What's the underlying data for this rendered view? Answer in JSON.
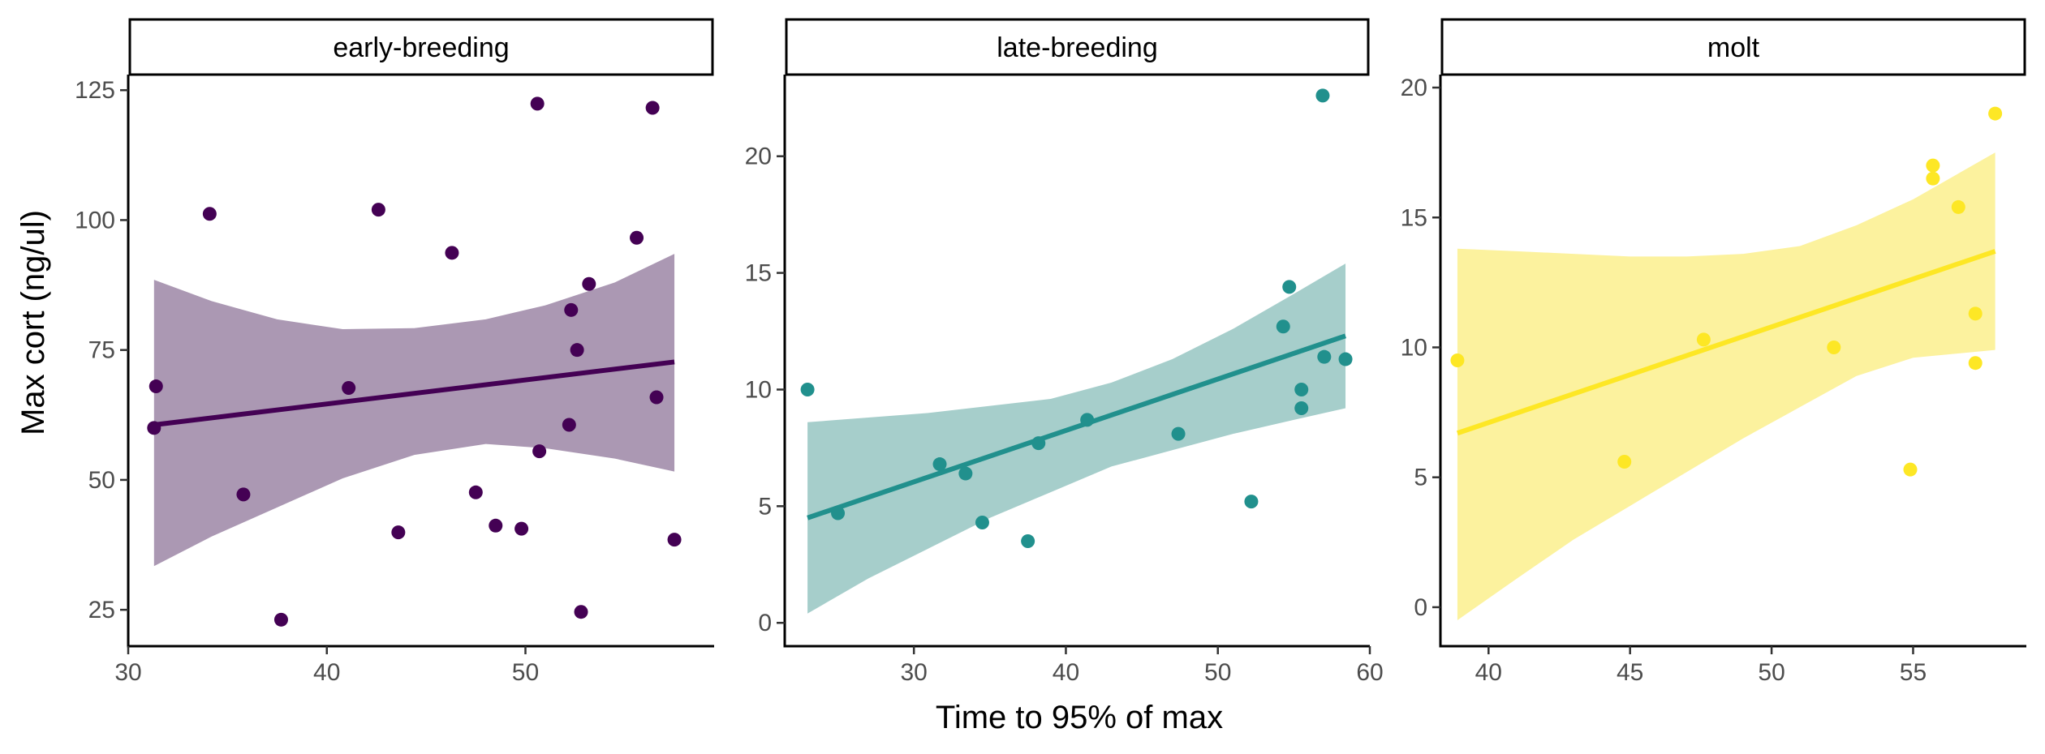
{
  "chart_data": {
    "type": "scatter",
    "xlabel": "Time to 95% of max",
    "ylabel": "Max cort (ng/ul)",
    "grid": false,
    "legend": "none",
    "panels": [
      {
        "strip": "early-breeding",
        "color": "#440154",
        "band_color": "#ab98b3",
        "xlim": [
          30,
          59.5
        ],
        "ylim": [
          18,
          128
        ],
        "x_ticks": [
          30,
          40,
          50
        ],
        "y_ticks": [
          25,
          50,
          75,
          100,
          125
        ],
        "points": [
          [
            31.3,
            60
          ],
          [
            31.4,
            68
          ],
          [
            34.1,
            101.2
          ],
          [
            35.8,
            47.2
          ],
          [
            37.7,
            23.1
          ],
          [
            41.1,
            67.7
          ],
          [
            42.6,
            102
          ],
          [
            43.6,
            39.9
          ],
          [
            46.3,
            93.7
          ],
          [
            47.5,
            47.6
          ],
          [
            48.5,
            41.2
          ],
          [
            49.8,
            40.6
          ],
          [
            50.6,
            122.4
          ],
          [
            50.7,
            55.5
          ],
          [
            52.2,
            60.6
          ],
          [
            52.3,
            82.7
          ],
          [
            52.6,
            75
          ],
          [
            52.8,
            24.6
          ],
          [
            53.2,
            87.7
          ],
          [
            55.6,
            96.6
          ],
          [
            56.4,
            121.6
          ],
          [
            56.6,
            65.9
          ],
          [
            57.5,
            38.5
          ]
        ],
        "fit": {
          "x": [
            31.3,
            57.5
          ],
          "y": [
            60.6,
            72.7
          ]
        },
        "ci": {
          "x": [
            31.3,
            34.2,
            37.5,
            40.8,
            44.4,
            48.0,
            51.0,
            54.5,
            57.5
          ],
          "upper": [
            88.5,
            84.4,
            80.9,
            79.0,
            79.2,
            80.9,
            83.6,
            88.0,
            93.5
          ],
          "lower": [
            33.4,
            39.1,
            44.7,
            50.3,
            54.8,
            56.9,
            56.1,
            54.1,
            51.6
          ]
        }
      },
      {
        "strip": "late-breeding",
        "color": "#21908d",
        "band_color": "#a6cecb",
        "xlim": [
          21.5,
          60
        ],
        "ylim": [
          -1,
          23.5
        ],
        "x_ticks": [
          30,
          40,
          50,
          60
        ],
        "y_ticks": [
          0,
          5,
          10,
          15,
          20
        ],
        "points": [
          [
            23,
            10
          ],
          [
            25,
            4.7
          ],
          [
            31.7,
            6.8
          ],
          [
            33.4,
            6.4
          ],
          [
            34.5,
            4.3
          ],
          [
            37.5,
            3.5
          ],
          [
            38.2,
            7.7
          ],
          [
            41.4,
            8.7
          ],
          [
            47.4,
            8.1
          ],
          [
            52.2,
            5.2
          ],
          [
            54.3,
            12.7
          ],
          [
            54.7,
            14.4
          ],
          [
            55.5,
            10
          ],
          [
            55.5,
            9.2
          ],
          [
            56.9,
            22.6
          ],
          [
            57,
            11.4
          ],
          [
            58.4,
            11.3
          ]
        ],
        "fit": {
          "x": [
            23,
            58.4
          ],
          "y": [
            4.5,
            12.3
          ]
        },
        "ci": {
          "x": [
            23,
            27,
            31,
            35,
            39,
            43,
            47,
            51,
            55,
            58.4
          ],
          "upper": [
            8.6,
            8.8,
            9.0,
            9.3,
            9.6,
            10.3,
            11.3,
            12.6,
            14.1,
            15.4
          ],
          "lower": [
            0.4,
            1.9,
            3.2,
            4.5,
            5.6,
            6.7,
            7.4,
            8.1,
            8.7,
            9.2
          ]
        }
      },
      {
        "strip": "molt",
        "color": "#fde725",
        "band_color": "#fcf29e",
        "xlim": [
          38.3,
          59
        ],
        "ylim": [
          -1.5,
          20.5
        ],
        "x_ticks": [
          40,
          45,
          50,
          55
        ],
        "y_ticks": [
          0,
          5,
          10,
          15,
          20
        ],
        "points": [
          [
            38.9,
            9.5
          ],
          [
            44.8,
            5.6
          ],
          [
            47.6,
            10.3
          ],
          [
            52.2,
            10
          ],
          [
            54.9,
            5.3
          ],
          [
            55.7,
            17
          ],
          [
            55.7,
            16.5
          ],
          [
            56.6,
            15.4
          ],
          [
            57.2,
            11.3
          ],
          [
            57.2,
            9.4
          ],
          [
            57.9,
            19
          ]
        ],
        "fit": {
          "x": [
            38.9,
            57.9
          ],
          "y": [
            6.7,
            13.7
          ]
        },
        "ci": {
          "x": [
            38.9,
            41,
            43,
            45,
            47,
            49,
            51,
            53,
            55,
            57.9
          ],
          "upper": [
            13.8,
            13.7,
            13.6,
            13.5,
            13.5,
            13.6,
            13.9,
            14.7,
            15.7,
            17.5
          ],
          "lower": [
            -0.5,
            1.1,
            2.6,
            3.9,
            5.2,
            6.5,
            7.7,
            8.9,
            9.6,
            9.9
          ]
        }
      }
    ]
  }
}
